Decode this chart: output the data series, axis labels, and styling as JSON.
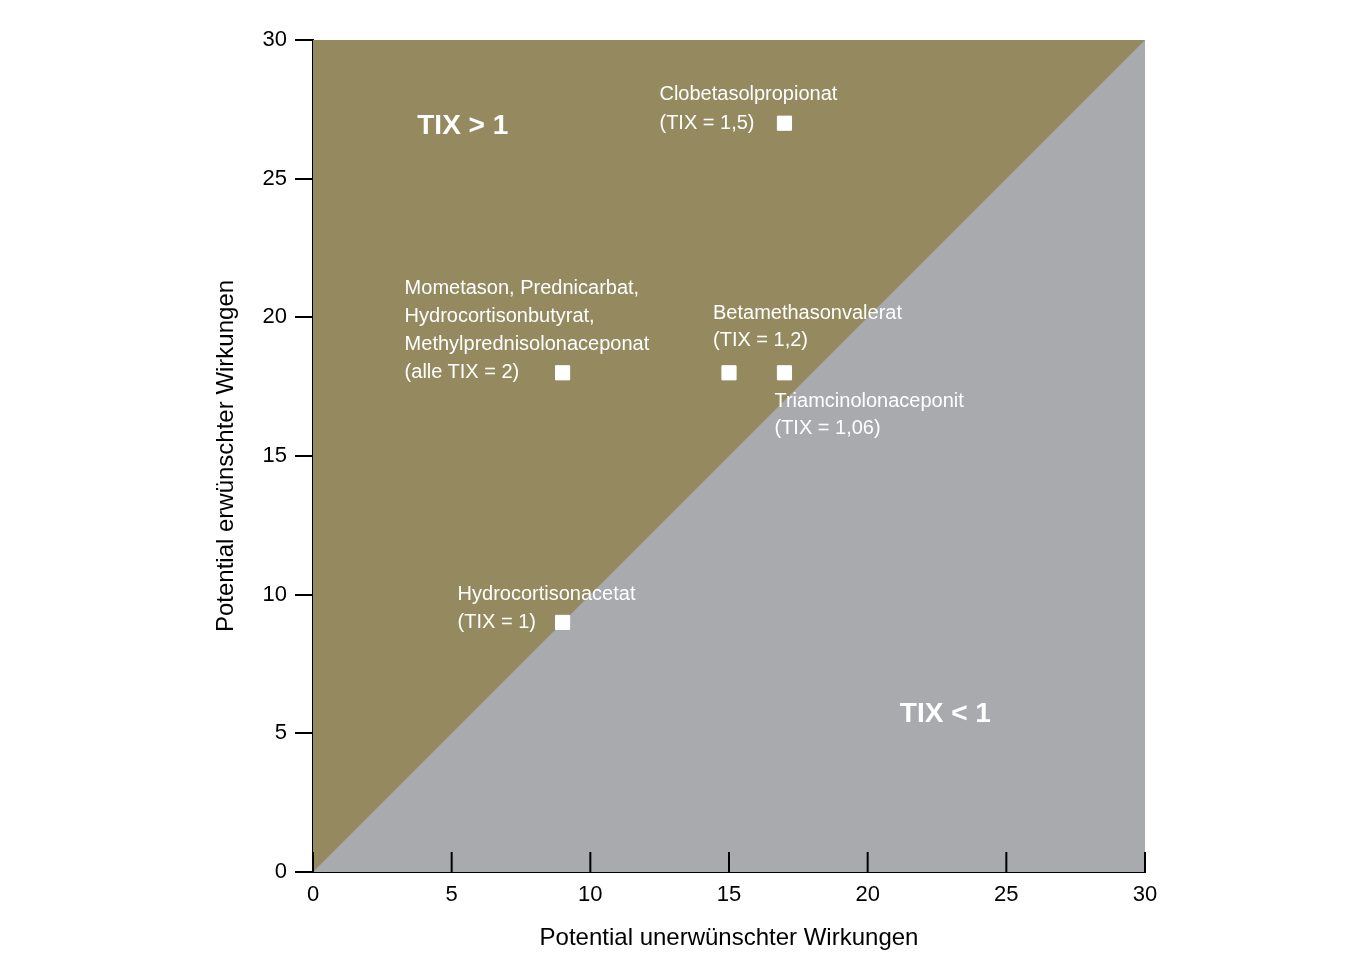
{
  "chart_data": {
    "type": "scatter",
    "xlabel": "Potential unerwünschter Wirkungen",
    "ylabel": "Potential erwünschter Wirkungen",
    "xlim": [
      0,
      30
    ],
    "ylim": [
      0,
      30
    ],
    "xticks": [
      0,
      5,
      10,
      15,
      20,
      25,
      30
    ],
    "yticks": [
      0,
      5,
      10,
      15,
      20,
      25,
      30
    ],
    "grid": false,
    "legend": false,
    "series": [
      {
        "color": "#ffffff",
        "marker": "square",
        "x": [
          17,
          9,
          15,
          17,
          9
        ],
        "values": [
          27,
          18,
          18,
          18,
          9
        ]
      },
      {
        "type": "area",
        "color": "#a9aaae",
        "x": [
          0,
          30
        ],
        "values": [
          0,
          30
        ]
      }
    ],
    "annotations": [
      "TIX > 1",
      "TIX < 1",
      {
        "text": "Clobetasolpropionat\n(TIX = 1,5)",
        "x": 17,
        "y": 27
      },
      {
        "text": "Mometason, Prednicarbat,\nHydrocortisonbutyrat,\nMethylprednisolonaceponat\n(alle TIX = 2)",
        "x": 9,
        "y": 18
      },
      {
        "text": "Betamethasonvalerat\n(TIX = 1,2)",
        "x": 15,
        "y": 18
      },
      {
        "text": "Triamcinolonaceponit\n(TIX = 1,06)",
        "x": 17,
        "y": 18
      },
      {
        "text": "Hydrocortisonacetat\n(TIX = 1)",
        "x": 9,
        "y": 9
      }
    ]
  }
}
